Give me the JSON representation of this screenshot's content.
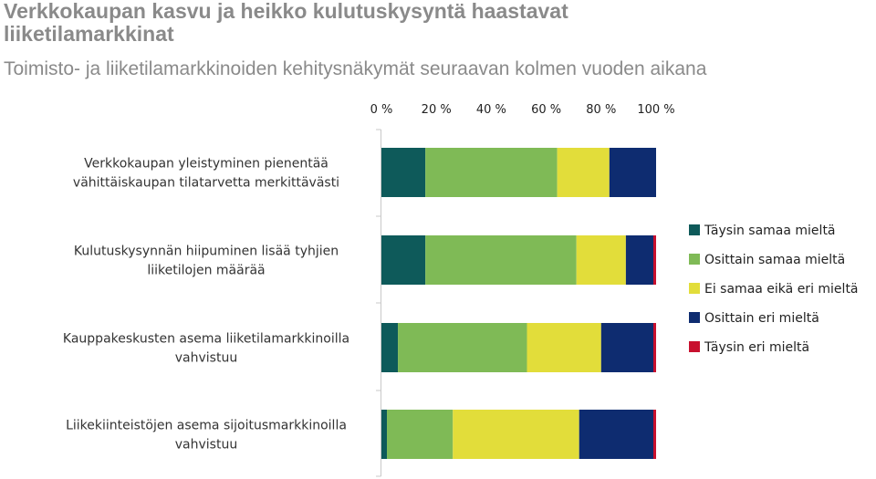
{
  "header": {
    "title": "Verkkokaupan kasvu ja heikko kulutuskysyntä haastavat liiketilamarkkinat",
    "subtitle": "Toimisto- ja liiketilamarkkinoiden kehitysnäkymät seuraavan kolmen vuoden aikana"
  },
  "chart_data": {
    "type": "bar",
    "orientation": "horizontal",
    "stacked": true,
    "xlim": [
      0,
      100
    ],
    "x_ticks": [
      "0 %",
      "20 %",
      "40 %",
      "60 %",
      "80 %",
      "100 %"
    ],
    "grid": false,
    "legend_position": "right",
    "categories": [
      [
        "Verkkokaupan yleistyminen pienentää",
        "vähittäiskaupan tilatarvetta merkittävästi"
      ],
      [
        "Kulutuskysynnän hiipuminen lisää tyhjien",
        "liiketilojen määrää"
      ],
      [
        "Kauppakeskusten asema liiketilamarkkinoilla",
        "vahvistuu"
      ],
      [
        "Liikekiinteistöjen asema sijoitusmarkkinoilla",
        "vahvistuu"
      ]
    ],
    "series": [
      {
        "name": "Täysin samaa mieltä",
        "color": "#0e5a5a",
        "values": [
          16,
          16,
          6,
          2
        ]
      },
      {
        "name": "Osittain samaa mieltä",
        "color": "#7fba56",
        "values": [
          48,
          55,
          47,
          24
        ]
      },
      {
        "name": "Ei samaa eikä eri mieltä",
        "color": "#e2dd3a",
        "values": [
          19,
          18,
          27,
          46
        ]
      },
      {
        "name": "Osittain eri mieltä",
        "color": "#0e2c70",
        "values": [
          17,
          10,
          19,
          27
        ]
      },
      {
        "name": "Täysin eri mieltä",
        "color": "#c8102e",
        "values": [
          0,
          1,
          1,
          1
        ]
      }
    ]
  }
}
